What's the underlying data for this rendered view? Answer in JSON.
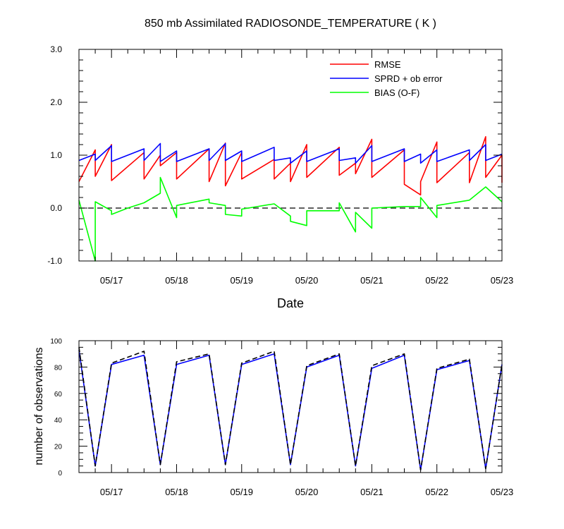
{
  "figure": {
    "title": "850 mb Assimilated RADIOSONDE_TEMPERATURE ( K )"
  },
  "chart_data": [
    {
      "type": "line",
      "title": "850 mb Assimilated RADIOSONDE_TEMPERATURE ( K )",
      "xlabel": "Date",
      "ylabel": "",
      "xlim": [
        16.5,
        23.0
      ],
      "ylim": [
        -1.0,
        3.0
      ],
      "x_ticks": [
        17,
        18,
        19,
        20,
        21,
        22,
        23
      ],
      "x_tick_labels": [
        "05/17",
        "05/18",
        "05/19",
        "05/20",
        "05/21",
        "05/22",
        "05/23"
      ],
      "y_ticks": [
        -1.0,
        0.0,
        1.0,
        2.0,
        3.0
      ],
      "y_tick_labels": [
        "-1.0",
        "0.0",
        "1.0",
        "2.0",
        "3.0"
      ],
      "legend_position": "top-right",
      "reference_line": {
        "y": 0.0,
        "style": "dashed",
        "color": "#000000"
      },
      "series": [
        {
          "name": "RMSE",
          "color": "#ff0000",
          "points": [
            [
              16.5,
              0.5
            ],
            [
              16.75,
              1.1
            ],
            [
              16.75,
              0.6
            ],
            [
              17.0,
              1.2
            ],
            [
              17.0,
              0.52
            ],
            [
              17.5,
              1.05
            ],
            [
              17.5,
              0.55
            ],
            [
              17.75,
              1.0
            ],
            [
              17.75,
              0.8
            ],
            [
              18.0,
              1.05
            ],
            [
              18.0,
              0.55
            ],
            [
              18.5,
              1.12
            ],
            [
              18.5,
              0.5
            ],
            [
              18.75,
              1.23
            ],
            [
              18.75,
              0.42
            ],
            [
              19.0,
              1.05
            ],
            [
              19.0,
              0.55
            ],
            [
              19.5,
              0.92
            ],
            [
              19.5,
              0.55
            ],
            [
              19.75,
              0.85
            ],
            [
              19.75,
              0.5
            ],
            [
              20.0,
              1.2
            ],
            [
              20.0,
              0.58
            ],
            [
              20.5,
              1.15
            ],
            [
              20.5,
              0.62
            ],
            [
              20.75,
              0.85
            ],
            [
              20.75,
              0.65
            ],
            [
              21.0,
              1.3
            ],
            [
              21.0,
              0.58
            ],
            [
              21.5,
              1.1
            ],
            [
              21.5,
              0.45
            ],
            [
              21.75,
              0.25
            ],
            [
              21.75,
              0.5
            ],
            [
              22.0,
              1.25
            ],
            [
              22.0,
              0.48
            ],
            [
              22.5,
              1.05
            ],
            [
              22.5,
              0.48
            ],
            [
              22.75,
              1.35
            ],
            [
              22.75,
              0.58
            ],
            [
              23.0,
              1.0
            ],
            [
              23.0,
              0.48
            ]
          ]
        },
        {
          "name": "SPRD + ob error",
          "color": "#0000ff",
          "points": [
            [
              16.5,
              0.9
            ],
            [
              16.75,
              1.02
            ],
            [
              16.75,
              0.9
            ],
            [
              17.0,
              1.18
            ],
            [
              17.0,
              0.88
            ],
            [
              17.5,
              1.12
            ],
            [
              17.5,
              0.9
            ],
            [
              17.75,
              1.22
            ],
            [
              17.75,
              0.88
            ],
            [
              18.0,
              1.08
            ],
            [
              18.0,
              0.88
            ],
            [
              18.5,
              1.12
            ],
            [
              18.5,
              0.9
            ],
            [
              18.75,
              1.22
            ],
            [
              18.75,
              0.9
            ],
            [
              19.0,
              1.08
            ],
            [
              19.0,
              0.88
            ],
            [
              19.5,
              1.15
            ],
            [
              19.5,
              0.9
            ],
            [
              19.75,
              0.95
            ],
            [
              19.75,
              0.85
            ],
            [
              20.0,
              1.08
            ],
            [
              20.0,
              0.88
            ],
            [
              20.5,
              1.12
            ],
            [
              20.5,
              0.9
            ],
            [
              20.75,
              0.95
            ],
            [
              20.75,
              0.85
            ],
            [
              21.0,
              1.18
            ],
            [
              21.0,
              0.88
            ],
            [
              21.5,
              1.12
            ],
            [
              21.5,
              0.88
            ],
            [
              21.75,
              1.02
            ],
            [
              21.75,
              0.85
            ],
            [
              22.0,
              1.1
            ],
            [
              22.0,
              0.88
            ],
            [
              22.5,
              1.1
            ],
            [
              22.5,
              0.9
            ],
            [
              22.75,
              1.2
            ],
            [
              22.75,
              0.9
            ],
            [
              23.0,
              1.02
            ]
          ]
        },
        {
          "name": "BIAS (O-F)",
          "color": "#00ff00",
          "points": [
            [
              16.5,
              0.15
            ],
            [
              16.75,
              -1.0
            ],
            [
              16.75,
              0.12
            ],
            [
              17.0,
              -0.05
            ],
            [
              17.0,
              -0.12
            ],
            [
              17.25,
              0.0
            ],
            [
              17.5,
              0.1
            ],
            [
              17.75,
              0.28
            ],
            [
              17.75,
              0.58
            ],
            [
              18.0,
              -0.18
            ],
            [
              18.0,
              0.05
            ],
            [
              18.5,
              0.17
            ],
            [
              18.5,
              0.1
            ],
            [
              18.75,
              0.05
            ],
            [
              18.75,
              -0.12
            ],
            [
              19.0,
              -0.15
            ],
            [
              19.0,
              -0.02
            ],
            [
              19.5,
              0.08
            ],
            [
              19.75,
              -0.15
            ],
            [
              19.75,
              -0.25
            ],
            [
              20.0,
              -0.33
            ],
            [
              20.0,
              -0.05
            ],
            [
              20.5,
              -0.05
            ],
            [
              20.5,
              0.1
            ],
            [
              20.75,
              -0.45
            ],
            [
              20.75,
              -0.08
            ],
            [
              21.0,
              -0.38
            ],
            [
              21.0,
              0.0
            ],
            [
              21.5,
              0.03
            ],
            [
              21.75,
              0.03
            ],
            [
              21.75,
              0.2
            ],
            [
              22.0,
              -0.18
            ],
            [
              22.0,
              0.05
            ],
            [
              22.5,
              0.15
            ],
            [
              22.75,
              0.4
            ],
            [
              23.0,
              0.12
            ]
          ]
        }
      ]
    },
    {
      "type": "line",
      "title": "",
      "xlabel": "",
      "ylabel": "number of observations",
      "xlim": [
        16.5,
        23.0
      ],
      "ylim": [
        0,
        100
      ],
      "x_ticks": [
        17,
        18,
        19,
        20,
        21,
        22,
        23
      ],
      "x_tick_labels": [
        "05/17",
        "05/18",
        "05/19",
        "05/20",
        "05/21",
        "05/22",
        "05/23"
      ],
      "y_ticks": [
        0,
        20,
        40,
        60,
        80,
        100
      ],
      "y_tick_labels": [
        "0",
        "20",
        "40",
        "60",
        "80",
        "100"
      ],
      "series": [
        {
          "color": "#0000ff",
          "style": "solid",
          "points": [
            [
              16.5,
              93
            ],
            [
              16.75,
              5
            ],
            [
              17.0,
              82
            ],
            [
              17.5,
              89
            ],
            [
              17.75,
              6
            ],
            [
              18.0,
              82
            ],
            [
              18.5,
              89
            ],
            [
              18.75,
              6
            ],
            [
              19.0,
              82
            ],
            [
              19.5,
              90
            ],
            [
              19.75,
              6
            ],
            [
              20.0,
              80
            ],
            [
              20.5,
              89
            ],
            [
              20.75,
              5
            ],
            [
              21.0,
              79
            ],
            [
              21.5,
              89
            ],
            [
              21.75,
              2
            ],
            [
              22.0,
              78
            ],
            [
              22.5,
              85
            ],
            [
              22.75,
              3
            ],
            [
              23.0,
              82
            ]
          ]
        },
        {
          "color": "#000000",
          "style": "dashed",
          "points": [
            [
              16.5,
              95
            ],
            [
              16.75,
              5
            ],
            [
              17.0,
              83
            ],
            [
              17.5,
              92
            ],
            [
              17.75,
              6
            ],
            [
              18.0,
              84
            ],
            [
              18.5,
              90
            ],
            [
              18.75,
              6
            ],
            [
              19.0,
              83
            ],
            [
              19.5,
              92
            ],
            [
              19.75,
              6
            ],
            [
              20.0,
              81
            ],
            [
              20.5,
              90
            ],
            [
              20.75,
              5
            ],
            [
              21.0,
              81
            ],
            [
              21.5,
              90
            ],
            [
              21.75,
              2
            ],
            [
              22.0,
              79
            ],
            [
              22.5,
              86
            ],
            [
              22.75,
              3
            ],
            [
              23.0,
              82
            ]
          ]
        }
      ]
    }
  ]
}
